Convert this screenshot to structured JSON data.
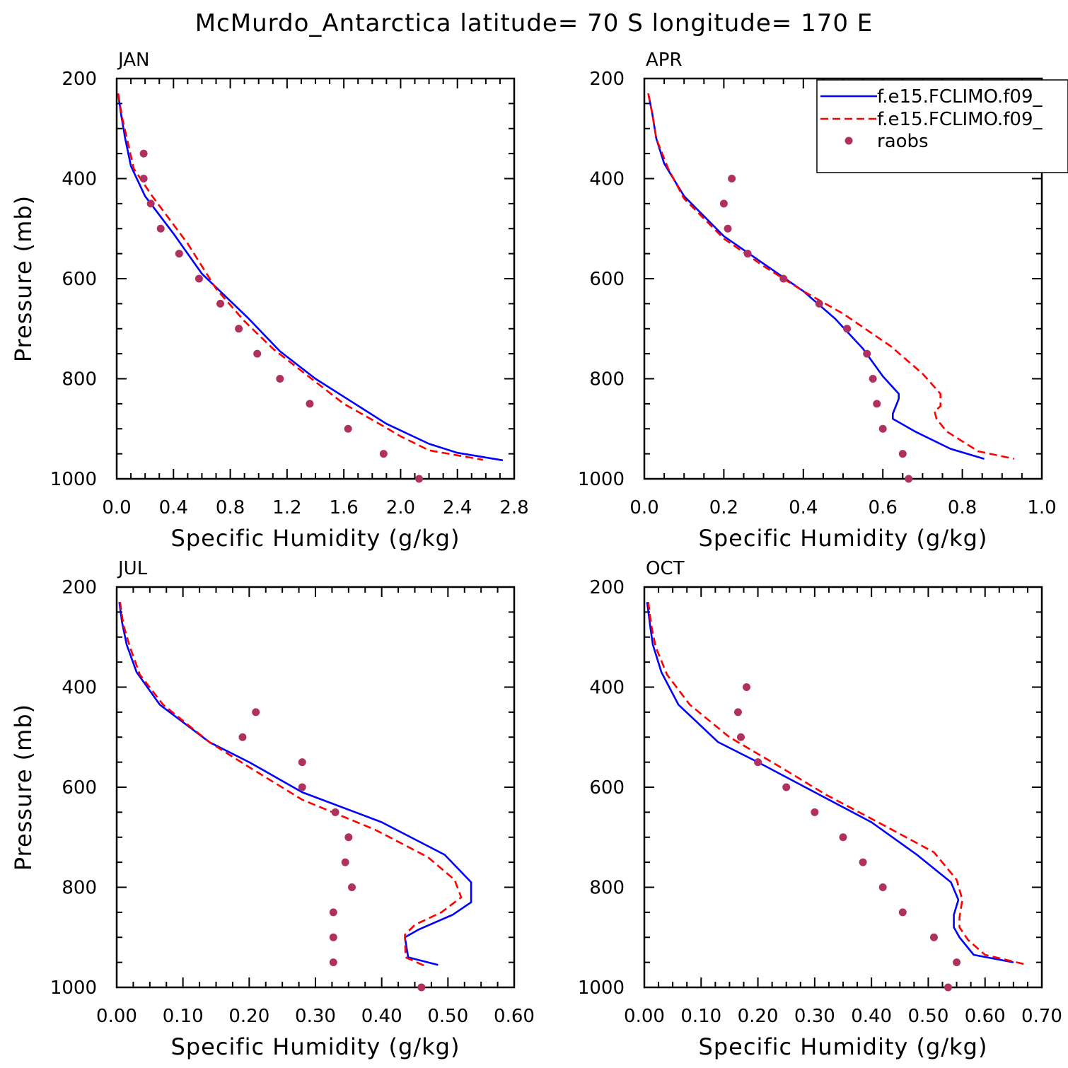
{
  "title": "McMurdo_Antarctica  latitude= 70 S longitude= 170 E",
  "chart_data": [
    {
      "type": "line",
      "title": "JAN",
      "xlabel": "Specific Humidity (g/kg)",
      "ylabel": "Pressure (mb)",
      "xlim": [
        0,
        2.8
      ],
      "ylim": [
        1000,
        200
      ],
      "xticks": [
        "0.0",
        "0.4",
        "0.8",
        "1.2",
        "1.6",
        "2.0",
        "2.4",
        "2.8"
      ],
      "yticks": [
        "200",
        "400",
        "600",
        "800",
        "1000"
      ],
      "series": [
        {
          "style": "solid",
          "color": "#0000ff",
          "x": [
            0.01,
            0.03,
            0.06,
            0.1,
            0.2,
            0.4,
            0.6,
            0.93,
            1.15,
            1.4,
            1.65,
            1.9,
            2.2,
            2.4,
            2.72
          ],
          "y": [
            230,
            270,
            320,
            375,
            435,
            510,
            590,
            680,
            745,
            800,
            845,
            890,
            930,
            948,
            963
          ]
        },
        {
          "style": "dashed",
          "color": "#ff0000",
          "x": [
            0.01,
            0.04,
            0.08,
            0.12,
            0.25,
            0.5,
            0.7,
            0.9,
            1.1,
            1.35,
            1.6,
            1.85,
            2.0,
            2.2,
            2.58
          ],
          "y": [
            230,
            280,
            330,
            380,
            435,
            530,
            620,
            685,
            740,
            795,
            850,
            890,
            915,
            943,
            962
          ]
        },
        {
          "style": "dots",
          "color": "#b03060",
          "x": [
            0.19,
            0.19,
            0.24,
            0.31,
            0.44,
            0.58,
            0.73,
            0.86,
            0.99,
            1.15,
            1.36,
            1.63,
            1.88,
            2.13
          ],
          "y": [
            350,
            400,
            450,
            500,
            550,
            600,
            650,
            700,
            750,
            800,
            850,
            900,
            950,
            1000
          ]
        }
      ]
    },
    {
      "type": "line",
      "title": "APR",
      "xlabel": "Specific Humidity (g/kg)",
      "ylabel": "",
      "xlim": [
        0,
        1.0
      ],
      "ylim": [
        1000,
        200
      ],
      "xticks": [
        "0.0",
        "0.2",
        "0.4",
        "0.6",
        "0.8",
        "1.0"
      ],
      "yticks": [
        "200",
        "400",
        "600",
        "800",
        "1000"
      ],
      "series": [
        {
          "name": "f.e15.FCLIMO.f09_",
          "style": "solid",
          "color": "#0000ff",
          "x": [
            0.01,
            0.02,
            0.03,
            0.05,
            0.1,
            0.2,
            0.3,
            0.4,
            0.48,
            0.55,
            0.6,
            0.64,
            0.64,
            0.625,
            0.625,
            0.68,
            0.77,
            0.855
          ],
          "y": [
            230,
            270,
            320,
            370,
            435,
            515,
            570,
            625,
            680,
            740,
            795,
            830,
            840,
            870,
            880,
            905,
            940,
            960
          ]
        },
        {
          "name": "f.e15.FCLIMO.f09_",
          "style": "dashed",
          "color": "#ff0000",
          "x": [
            0.01,
            0.02,
            0.03,
            0.06,
            0.1,
            0.2,
            0.3,
            0.4,
            0.5,
            0.62,
            0.7,
            0.745,
            0.745,
            0.73,
            0.735,
            0.76,
            0.84,
            0.93
          ],
          "y": [
            230,
            270,
            320,
            380,
            440,
            520,
            575,
            625,
            670,
            735,
            790,
            830,
            855,
            865,
            880,
            905,
            945,
            960
          ]
        },
        {
          "name": "raobs",
          "style": "dots",
          "color": "#b03060",
          "x": [
            0.22,
            0.2,
            0.21,
            0.26,
            0.35,
            0.44,
            0.51,
            0.56,
            0.575,
            0.585,
            0.6,
            0.65,
            0.665
          ],
          "y": [
            400,
            450,
            500,
            550,
            600,
            650,
            700,
            750,
            800,
            850,
            900,
            950,
            1000
          ]
        }
      ]
    },
    {
      "type": "line",
      "title": "JUL",
      "xlabel": "Specific Humidity (g/kg)",
      "ylabel": "Pressure (mb)",
      "xlim": [
        0,
        0.6
      ],
      "ylim": [
        1000,
        200
      ],
      "xticks": [
        "0.00",
        "0.10",
        "0.20",
        "0.30",
        "0.40",
        "0.50",
        "0.60"
      ],
      "yticks": [
        "200",
        "400",
        "600",
        "800",
        "1000"
      ],
      "series": [
        {
          "style": "solid",
          "color": "#0000ff",
          "x": [
            0.004,
            0.008,
            0.015,
            0.03,
            0.065,
            0.14,
            0.2,
            0.28,
            0.4,
            0.495,
            0.535,
            0.535,
            0.507,
            0.455,
            0.435,
            0.44,
            0.485
          ],
          "y": [
            230,
            270,
            315,
            370,
            435,
            510,
            550,
            610,
            670,
            735,
            790,
            830,
            855,
            885,
            900,
            940,
            955
          ]
        },
        {
          "style": "dashed",
          "color": "#ff0000",
          "x": [
            0.005,
            0.01,
            0.02,
            0.035,
            0.07,
            0.14,
            0.2,
            0.28,
            0.39,
            0.47,
            0.51,
            0.52,
            0.49,
            0.45,
            0.435,
            0.436,
            0.465
          ],
          "y": [
            230,
            275,
            320,
            375,
            435,
            510,
            560,
            625,
            685,
            740,
            785,
            820,
            850,
            875,
            895,
            940,
            957
          ]
        },
        {
          "style": "dots",
          "color": "#b03060",
          "x": [
            0.21,
            0.19,
            0.28,
            0.28,
            0.33,
            0.35,
            0.345,
            0.355,
            0.327,
            0.327,
            0.327,
            0.46
          ],
          "y": [
            450,
            500,
            550,
            600,
            650,
            700,
            750,
            800,
            850,
            900,
            950,
            1000
          ]
        }
      ]
    },
    {
      "type": "line",
      "title": "OCT",
      "xlabel": "Specific Humidity (g/kg)",
      "ylabel": "",
      "xlim": [
        0,
        0.7
      ],
      "ylim": [
        1000,
        200
      ],
      "xticks": [
        "0.00",
        "0.10",
        "0.20",
        "0.30",
        "0.40",
        "0.50",
        "0.60",
        "0.70"
      ],
      "yticks": [
        "200",
        "400",
        "600",
        "800",
        "1000"
      ],
      "series": [
        {
          "style": "solid",
          "color": "#0000ff",
          "x": [
            0.005,
            0.01,
            0.015,
            0.03,
            0.06,
            0.13,
            0.2,
            0.3,
            0.4,
            0.48,
            0.54,
            0.553,
            0.545,
            0.545,
            0.555,
            0.58,
            0.65
          ],
          "y": [
            230,
            275,
            315,
            370,
            435,
            510,
            550,
            610,
            670,
            735,
            790,
            825,
            855,
            880,
            900,
            935,
            950
          ]
        },
        {
          "style": "dashed",
          "color": "#ff0000",
          "x": [
            0.007,
            0.012,
            0.02,
            0.04,
            0.08,
            0.15,
            0.24,
            0.32,
            0.42,
            0.51,
            0.55,
            0.56,
            0.555,
            0.555,
            0.57,
            0.6,
            0.675
          ],
          "y": [
            230,
            275,
            320,
            375,
            435,
            500,
            560,
            615,
            675,
            730,
            785,
            825,
            860,
            880,
            905,
            935,
            955
          ]
        },
        {
          "style": "dots",
          "color": "#b03060",
          "x": [
            0.18,
            0.165,
            0.17,
            0.2,
            0.25,
            0.3,
            0.35,
            0.385,
            0.42,
            0.455,
            0.51,
            0.55,
            0.535
          ],
          "y": [
            400,
            450,
            500,
            550,
            600,
            650,
            700,
            750,
            800,
            850,
            900,
            950,
            1000
          ]
        }
      ]
    }
  ],
  "legend": {
    "placement": "top-right of APR panel",
    "entries": [
      "f.e15.FCLIMO.f09_",
      "f.e15.FCLIMO.f09_",
      "raobs"
    ]
  }
}
